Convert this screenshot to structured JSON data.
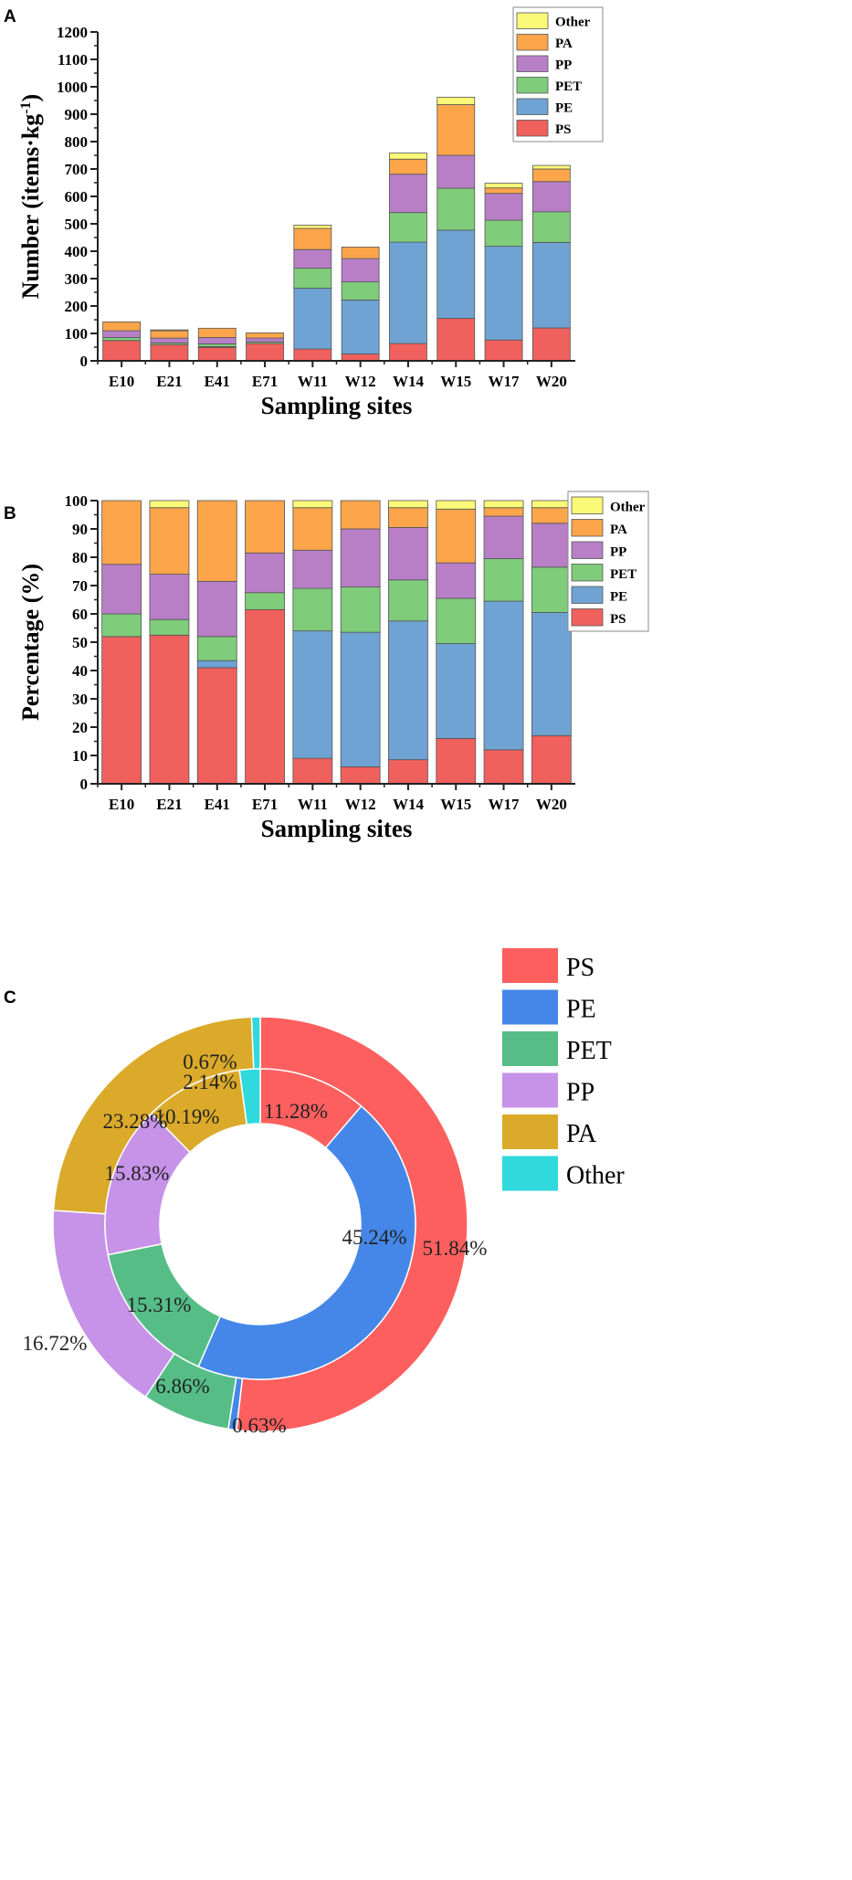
{
  "chart_data": [
    {
      "panel": "A",
      "type": "bar",
      "stacked": true,
      "title": "",
      "xlabel": "Sampling sites",
      "ylabel": "Number (items·kg",
      "ylabel_sup": "-1",
      "ylabel_end": ")",
      "ylim": [
        0,
        1200
      ],
      "yticks": [
        0,
        100,
        200,
        300,
        400,
        500,
        600,
        700,
        800,
        900,
        1000,
        1100,
        1200
      ],
      "legend_position": "top-right",
      "categories": [
        "E10",
        "E21",
        "E41",
        "E71",
        "W11",
        "W12",
        "W14",
        "W15",
        "W17",
        "W20"
      ],
      "series": [
        {
          "name": "PS",
          "color": "#f0605d",
          "values": [
            74,
            59,
            49,
            63,
            43,
            25,
            63,
            155,
            76,
            120
          ]
        },
        {
          "name": "PE",
          "color": "#6fa3d3",
          "values": [
            0,
            0,
            3,
            0,
            222,
            197,
            370,
            322,
            342,
            312
          ]
        },
        {
          "name": "PET",
          "color": "#7fcc7a",
          "values": [
            11,
            6,
            10,
            6,
            73,
            66,
            108,
            153,
            95,
            112
          ]
        },
        {
          "name": "PP",
          "color": "#b87fc7",
          "values": [
            25,
            18,
            23,
            14,
            68,
            85,
            140,
            120,
            98,
            110
          ]
        },
        {
          "name": "PA",
          "color": "#fca54a",
          "values": [
            32,
            27,
            34,
            19,
            77,
            42,
            55,
            185,
            20,
            46
          ]
        },
        {
          "name": "Other",
          "color": "#fafa78",
          "values": [
            0,
            3,
            0,
            0,
            12,
            0,
            22,
            27,
            17,
            13
          ]
        }
      ]
    },
    {
      "panel": "B",
      "type": "bar",
      "stacked": true,
      "title": "",
      "xlabel": "Sampling sites",
      "ylabel": "Percentage (%)",
      "ylim": [
        0,
        100
      ],
      "yticks": [
        0,
        10,
        20,
        30,
        40,
        50,
        60,
        70,
        80,
        90,
        100
      ],
      "legend_position": "right",
      "categories": [
        "E10",
        "E21",
        "E41",
        "E71",
        "W11",
        "W12",
        "W14",
        "W15",
        "W17",
        "W20"
      ],
      "series": [
        {
          "name": "PS",
          "color": "#f0605d",
          "values": [
            52,
            52.5,
            41,
            61.5,
            9,
            6,
            8.5,
            16,
            12,
            17
          ]
        },
        {
          "name": "PE",
          "color": "#6fa3d3",
          "values": [
            0,
            0,
            2.5,
            0,
            45,
            47.5,
            49,
            33.5,
            52.5,
            43.5
          ]
        },
        {
          "name": "PET",
          "color": "#7fcc7a",
          "values": [
            8,
            5.5,
            8.5,
            6,
            15,
            16,
            14.5,
            16,
            15,
            16
          ]
        },
        {
          "name": "PP",
          "color": "#b87fc7",
          "values": [
            17.5,
            16,
            19.5,
            14,
            13.5,
            20.5,
            18.5,
            12.5,
            15,
            15.5
          ]
        },
        {
          "name": "PA",
          "color": "#fca54a",
          "values": [
            22.5,
            23.5,
            28.5,
            18.5,
            15,
            10,
            7,
            19,
            3,
            5.5
          ]
        },
        {
          "name": "Other",
          "color": "#fafa78",
          "values": [
            0,
            2.5,
            0,
            0,
            2.5,
            0,
            2.5,
            3,
            2.5,
            2.5
          ]
        }
      ]
    },
    {
      "panel": "C",
      "type": "pie",
      "donut": true,
      "legend_position": "top-right",
      "categories": [
        "PS",
        "PE",
        "PET",
        "PP",
        "PA",
        "Other"
      ],
      "colors": [
        "#fd5f5f",
        "#4587e8",
        "#56bd87",
        "#c693e8",
        "#dbaa2a",
        "#2fd9dc"
      ],
      "rings": [
        {
          "name": "outer",
          "values": [
            51.84,
            0.63,
            6.86,
            16.72,
            23.28,
            0.67
          ],
          "labels": [
            "51.84%",
            "0.63%",
            "6.86%",
            "16.72%",
            "23.28%",
            "0.67%"
          ]
        },
        {
          "name": "inner",
          "values": [
            11.28,
            45.24,
            15.31,
            15.83,
            10.19,
            2.14
          ],
          "labels": [
            "11.28%",
            "45.24%",
            "15.31%",
            "15.83%",
            "10.19%",
            "2.14%"
          ]
        }
      ]
    }
  ],
  "panel_labels": [
    "A",
    "B",
    "C"
  ]
}
